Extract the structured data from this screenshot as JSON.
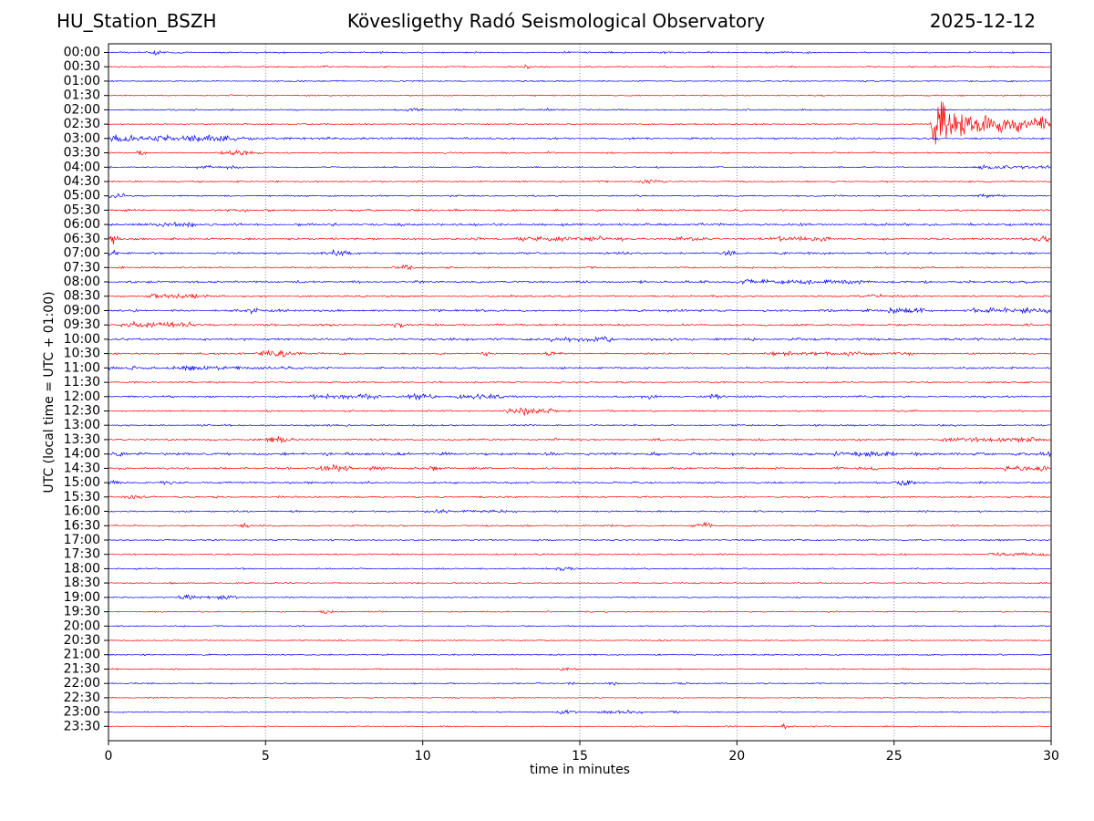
{
  "chart_data": {
    "type": "line",
    "variant": "helicorder-dayplot",
    "station": "HU_Station_BSZH",
    "title": "Kövesligethy Radó Seismological Observatory",
    "date": "2025-12-12",
    "xlabel": "time in minutes",
    "ylabel": "UTC (local time = UTC + 01:00)",
    "xlim": [
      0,
      30
    ],
    "minutes_per_line": 30,
    "x_ticks": [
      0,
      5,
      10,
      15,
      20,
      25,
      30
    ],
    "x_tick_labels": [
      "0",
      "5",
      "10",
      "15",
      "20",
      "25",
      "30"
    ],
    "grid": {
      "vertical_dotted_at": [
        5,
        10,
        15,
        20,
        25
      ]
    },
    "trace_colors": {
      "even_rows": "#0000ff",
      "odd_rows": "#ff0000"
    },
    "amp_unit": "fraction_of_half_row_spacing",
    "event_types": {
      "g": "[t_center_min, width_min, amp] gaussian burst",
      "c": "[t_start, t_end, amp] elevated band",
      "e": "[t_start, tau_min, amp] exponential coda decay"
    },
    "main_event_note": "large local event on 02:30 line starting ~26.3 min, coda continues into 03:00 line",
    "rows": [
      {
        "label": "00:00",
        "color": "#0000ff",
        "noise": 0.13,
        "events": [
          [
            "g",
            1.5,
            0.15,
            0.3
          ]
        ]
      },
      {
        "label": "00:30",
        "color": "#ff0000",
        "noise": 0.11,
        "events": [
          [
            "g",
            7,
            0.1,
            0.15
          ],
          [
            "g",
            13.3,
            0.1,
            0.15
          ],
          [
            "g",
            17.6,
            0.1,
            0.12
          ]
        ]
      },
      {
        "label": "01:00",
        "color": "#0000ff",
        "noise": 0.11,
        "events": []
      },
      {
        "label": "01:30",
        "color": "#ff0000",
        "noise": 0.1,
        "events": []
      },
      {
        "label": "02:00",
        "color": "#0000ff",
        "noise": 0.12,
        "events": [
          [
            "g",
            9.6,
            0.2,
            0.18
          ],
          [
            "g",
            14.0,
            0.15,
            0.15
          ]
        ]
      },
      {
        "label": "02:30",
        "color": "#ff0000",
        "noise": 0.1,
        "events": [
          [
            "g",
            26.32,
            0.06,
            5.6
          ],
          [
            "e",
            26.32,
            0.7,
            3.2
          ],
          [
            "c",
            26.5,
            30,
            0.95
          ]
        ]
      },
      {
        "label": "03:00",
        "color": "#0000ff",
        "noise": 0.15,
        "events": [
          [
            "e",
            0,
            2.8,
            0.5
          ],
          [
            "g",
            3.2,
            0.6,
            0.18
          ]
        ]
      },
      {
        "label": "03:30",
        "color": "#ff0000",
        "noise": 0.12,
        "events": [
          [
            "g",
            1.05,
            0.12,
            0.3
          ],
          [
            "g",
            4.1,
            0.35,
            0.3
          ],
          [
            "g",
            14.0,
            0.1,
            0.15
          ]
        ]
      },
      {
        "label": "04:00",
        "color": "#0000ff",
        "noise": 0.1,
        "events": [
          [
            "c",
            2.8,
            4.3,
            0.16
          ],
          [
            "c",
            27.5,
            30,
            0.16
          ]
        ]
      },
      {
        "label": "04:30",
        "color": "#ff0000",
        "noise": 0.12,
        "events": [
          [
            "g",
            17.2,
            0.25,
            0.28
          ]
        ]
      },
      {
        "label": "05:00",
        "color": "#0000ff",
        "noise": 0.12,
        "events": [
          [
            "g",
            0.3,
            0.18,
            0.35
          ],
          [
            "g",
            28,
            0.3,
            0.14
          ]
        ]
      },
      {
        "label": "05:30",
        "color": "#ff0000",
        "noise": 0.16,
        "events": [
          [
            "g",
            4.3,
            0.12,
            0.2
          ]
        ]
      },
      {
        "label": "06:00",
        "color": "#0000ff",
        "noise": 0.2,
        "events": [
          [
            "c",
            1.5,
            3.0,
            0.22
          ]
        ]
      },
      {
        "label": "06:30",
        "color": "#ff0000",
        "noise": 0.16,
        "events": [
          [
            "g",
            0.15,
            0.12,
            0.55
          ],
          [
            "g",
            18.3,
            0.3,
            0.28
          ],
          [
            "c",
            13,
            16.5,
            0.2
          ],
          [
            "c",
            21,
            23,
            0.2
          ],
          [
            "g",
            29.6,
            0.3,
            0.28
          ]
        ]
      },
      {
        "label": "07:00",
        "color": "#0000ff",
        "noise": 0.16,
        "events": [
          [
            "g",
            0.1,
            0.1,
            0.4
          ],
          [
            "g",
            7.3,
            0.25,
            0.4
          ],
          [
            "g",
            19.8,
            0.15,
            0.25
          ]
        ]
      },
      {
        "label": "07:30",
        "color": "#ff0000",
        "noise": 0.13,
        "events": [
          [
            "g",
            9.35,
            0.2,
            0.33
          ]
        ]
      },
      {
        "label": "08:00",
        "color": "#0000ff",
        "noise": 0.18,
        "events": [
          [
            "c",
            20,
            24,
            0.18
          ]
        ]
      },
      {
        "label": "08:30",
        "color": "#ff0000",
        "noise": 0.15,
        "events": [
          [
            "c",
            1.3,
            3.2,
            0.24
          ],
          [
            "g",
            24.5,
            0.2,
            0.18
          ]
        ]
      },
      {
        "label": "09:00",
        "color": "#0000ff",
        "noise": 0.18,
        "events": [
          [
            "g",
            4.6,
            0.12,
            0.4
          ],
          [
            "c",
            24.8,
            26,
            0.28
          ],
          [
            "c",
            27.5,
            30,
            0.26
          ]
        ]
      },
      {
        "label": "09:30",
        "color": "#ff0000",
        "noise": 0.16,
        "events": [
          [
            "c",
            0.4,
            2.6,
            0.3
          ],
          [
            "g",
            9.3,
            0.2,
            0.2
          ]
        ]
      },
      {
        "label": "10:00",
        "color": "#0000ff",
        "noise": 0.2,
        "events": [
          [
            "c",
            14,
            16,
            0.22
          ]
        ]
      },
      {
        "label": "10:30",
        "color": "#ff0000",
        "noise": 0.14,
        "events": [
          [
            "g",
            5.3,
            0.4,
            0.45
          ],
          [
            "g",
            12.1,
            0.15,
            0.25
          ],
          [
            "g",
            14.1,
            0.15,
            0.25
          ],
          [
            "c",
            21,
            24.5,
            0.2
          ],
          [
            "g",
            25.4,
            0.2,
            0.18
          ]
        ]
      },
      {
        "label": "11:00",
        "color": "#0000ff",
        "noise": 0.14,
        "events": [
          [
            "c",
            0,
            3.5,
            0.18
          ],
          [
            "c",
            2.3,
            7.2,
            0.1
          ]
        ]
      },
      {
        "label": "11:30",
        "color": "#ff0000",
        "noise": 0.13,
        "events": []
      },
      {
        "label": "12:00",
        "color": "#0000ff",
        "noise": 0.14,
        "events": [
          [
            "c",
            6.4,
            8.7,
            0.26
          ],
          [
            "g",
            9.9,
            0.35,
            0.33
          ],
          [
            "c",
            11,
            12.6,
            0.28
          ],
          [
            "g",
            17.2,
            0.15,
            0.3
          ],
          [
            "g",
            19.3,
            0.2,
            0.3
          ]
        ]
      },
      {
        "label": "12:30",
        "color": "#ff0000",
        "noise": 0.13,
        "events": [
          [
            "g",
            13.2,
            0.35,
            0.5
          ],
          [
            "g",
            14.0,
            0.15,
            0.22
          ]
        ]
      },
      {
        "label": "13:00",
        "color": "#0000ff",
        "noise": 0.13,
        "events": []
      },
      {
        "label": "13:30",
        "color": "#ff0000",
        "noise": 0.16,
        "events": [
          [
            "g",
            5.3,
            0.35,
            0.33
          ],
          [
            "c",
            26.5,
            30,
            0.22
          ]
        ]
      },
      {
        "label": "14:00",
        "color": "#0000ff",
        "noise": 0.22,
        "events": [
          [
            "g",
            0.3,
            0.1,
            0.35
          ],
          [
            "c",
            23,
            25,
            0.26
          ],
          [
            "g",
            29.9,
            0.2,
            0.38
          ]
        ]
      },
      {
        "label": "14:30",
        "color": "#ff0000",
        "noise": 0.16,
        "events": [
          [
            "g",
            7.2,
            0.35,
            0.48
          ],
          [
            "g",
            8.5,
            0.15,
            0.28
          ],
          [
            "g",
            10.4,
            0.15,
            0.24
          ],
          [
            "g",
            24.2,
            0.2,
            0.28
          ],
          [
            "c",
            28.5,
            30,
            0.22
          ]
        ]
      },
      {
        "label": "15:00",
        "color": "#0000ff",
        "noise": 0.15,
        "events": [
          [
            "g",
            0.2,
            0.12,
            0.4
          ],
          [
            "g",
            1.9,
            0.15,
            0.24
          ],
          [
            "g",
            25.4,
            0.25,
            0.33
          ]
        ]
      },
      {
        "label": "15:30",
        "color": "#ff0000",
        "noise": 0.13,
        "events": [
          [
            "g",
            0.85,
            0.2,
            0.38
          ]
        ]
      },
      {
        "label": "16:00",
        "color": "#0000ff",
        "noise": 0.13,
        "events": [
          [
            "c",
            10,
            13,
            0.14
          ]
        ]
      },
      {
        "label": "16:30",
        "color": "#ff0000",
        "noise": 0.13,
        "events": [
          [
            "g",
            4.35,
            0.1,
            0.28
          ],
          [
            "g",
            18.95,
            0.18,
            0.5
          ]
        ]
      },
      {
        "label": "17:00",
        "color": "#0000ff",
        "noise": 0.12,
        "events": []
      },
      {
        "label": "17:30",
        "color": "#ff0000",
        "noise": 0.12,
        "events": [
          [
            "c",
            28,
            30,
            0.18
          ]
        ]
      },
      {
        "label": "18:00",
        "color": "#0000ff",
        "noise": 0.11,
        "events": [
          [
            "g",
            14.55,
            0.25,
            0.28
          ]
        ]
      },
      {
        "label": "18:30",
        "color": "#ff0000",
        "noise": 0.11,
        "events": []
      },
      {
        "label": "19:00",
        "color": "#0000ff",
        "noise": 0.11,
        "events": [
          [
            "c",
            2.2,
            4.2,
            0.24
          ]
        ]
      },
      {
        "label": "19:30",
        "color": "#ff0000",
        "noise": 0.1,
        "events": [
          [
            "g",
            6.95,
            0.12,
            0.24
          ]
        ]
      },
      {
        "label": "20:00",
        "color": "#0000ff",
        "noise": 0.1,
        "events": []
      },
      {
        "label": "20:30",
        "color": "#ff0000",
        "noise": 0.1,
        "events": []
      },
      {
        "label": "21:00",
        "color": "#0000ff",
        "noise": 0.11,
        "events": []
      },
      {
        "label": "21:30",
        "color": "#ff0000",
        "noise": 0.1,
        "events": [
          [
            "g",
            14.6,
            0.15,
            0.16
          ]
        ]
      },
      {
        "label": "22:00",
        "color": "#0000ff",
        "noise": 0.1,
        "events": [
          [
            "g",
            14.7,
            0.12,
            0.24
          ],
          [
            "g",
            16.0,
            0.12,
            0.28
          ],
          [
            "g",
            18.4,
            0.1,
            0.14
          ]
        ]
      },
      {
        "label": "22:30",
        "color": "#ff0000",
        "noise": 0.09,
        "events": []
      },
      {
        "label": "23:00",
        "color": "#0000ff",
        "noise": 0.1,
        "events": [
          [
            "g",
            14.6,
            0.2,
            0.28
          ],
          [
            "c",
            15.5,
            17,
            0.18
          ],
          [
            "g",
            18.0,
            0.12,
            0.16
          ]
        ]
      },
      {
        "label": "23:30",
        "color": "#ff0000",
        "noise": 0.09,
        "events": [
          [
            "g",
            21.5,
            0.15,
            0.28
          ],
          [
            "g",
            24.8,
            0.1,
            0.14
          ]
        ]
      }
    ]
  }
}
